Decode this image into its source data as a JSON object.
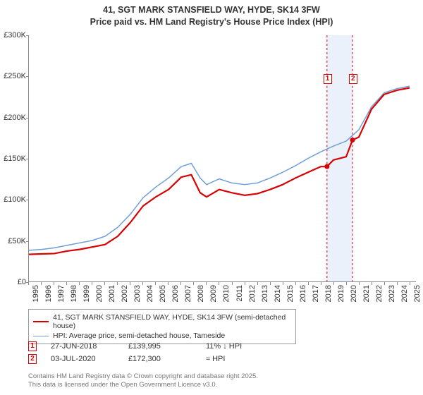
{
  "title": {
    "line1": "41, SGT MARK STANSFIELD WAY, HYDE, SK14 3FW",
    "line2": "Price paid vs. HM Land Registry's House Price Index (HPI)"
  },
  "chart": {
    "type": "line",
    "x_range": [
      1995,
      2025.5
    ],
    "y_range": [
      0,
      300000
    ],
    "y_ticks": [
      0,
      50000,
      100000,
      150000,
      200000,
      250000,
      300000
    ],
    "y_tick_labels": [
      "£0",
      "£50K",
      "£100K",
      "£150K",
      "£200K",
      "£250K",
      "£300K"
    ],
    "x_ticks": [
      1995,
      1996,
      1997,
      1998,
      1999,
      2000,
      2001,
      2002,
      2003,
      2004,
      2005,
      2006,
      2007,
      2008,
      2009,
      2010,
      2011,
      2012,
      2013,
      2014,
      2015,
      2016,
      2017,
      2018,
      2019,
      2020,
      2021,
      2022,
      2023,
      2024,
      2025
    ],
    "grid_color": "#888888",
    "background_color": "#ffffff",
    "series": [
      {
        "name": "price_paid",
        "label": "41, SGT MARK STANSFIELD WAY, HYDE, SK14 3FW (semi-detached house)",
        "color": "#d90000",
        "width": 2.2,
        "points": [
          [
            1995,
            33000
          ],
          [
            1996,
            33500
          ],
          [
            1997,
            34000
          ],
          [
            1998,
            37000
          ],
          [
            1999,
            39000
          ],
          [
            2000,
            42000
          ],
          [
            2001,
            45000
          ],
          [
            2002,
            55000
          ],
          [
            2003,
            72000
          ],
          [
            2004,
            92000
          ],
          [
            2005,
            103000
          ],
          [
            2006,
            112000
          ],
          [
            2007,
            127000
          ],
          [
            2007.8,
            130000
          ],
          [
            2008.5,
            108000
          ],
          [
            2009,
            103000
          ],
          [
            2010,
            112000
          ],
          [
            2011,
            108000
          ],
          [
            2012,
            105000
          ],
          [
            2013,
            107000
          ],
          [
            2014,
            112000
          ],
          [
            2015,
            118000
          ],
          [
            2016,
            126000
          ],
          [
            2017,
            133000
          ],
          [
            2018,
            140000
          ],
          [
            2018.49,
            139995
          ],
          [
            2019,
            148000
          ],
          [
            2020,
            152000
          ],
          [
            2020.5,
            172300
          ],
          [
            2021,
            176000
          ],
          [
            2022,
            210000
          ],
          [
            2023,
            228000
          ],
          [
            2024,
            233000
          ],
          [
            2025,
            236000
          ]
        ]
      },
      {
        "name": "hpi",
        "label": "HPI: Average price, semi-detached house, Tameside",
        "color": "#6f9fd8",
        "width": 1.5,
        "points": [
          [
            1995,
            38000
          ],
          [
            1996,
            39000
          ],
          [
            1997,
            41000
          ],
          [
            1998,
            44000
          ],
          [
            1999,
            47000
          ],
          [
            2000,
            50000
          ],
          [
            2001,
            55000
          ],
          [
            2002,
            66000
          ],
          [
            2003,
            82000
          ],
          [
            2004,
            102000
          ],
          [
            2005,
            115000
          ],
          [
            2006,
            126000
          ],
          [
            2007,
            140000
          ],
          [
            2007.8,
            144000
          ],
          [
            2008.5,
            126000
          ],
          [
            2009,
            118000
          ],
          [
            2010,
            125000
          ],
          [
            2011,
            120000
          ],
          [
            2012,
            118000
          ],
          [
            2013,
            120000
          ],
          [
            2014,
            126000
          ],
          [
            2015,
            133000
          ],
          [
            2016,
            141000
          ],
          [
            2017,
            150000
          ],
          [
            2018,
            158000
          ],
          [
            2019,
            165000
          ],
          [
            2020,
            171000
          ],
          [
            2021,
            185000
          ],
          [
            2022,
            213000
          ],
          [
            2023,
            230000
          ],
          [
            2024,
            235000
          ],
          [
            2025,
            238000
          ]
        ]
      }
    ],
    "sale_markers": [
      {
        "n": "1",
        "x": 2018.49,
        "y": 139995,
        "color": "#d90000"
      },
      {
        "n": "2",
        "x": 2020.5,
        "y": 172300,
        "color": "#d90000"
      }
    ],
    "band": {
      "from_x": 2018.49,
      "to_x": 2020.5,
      "color": "rgba(100,150,220,0.13)"
    }
  },
  "legend": {
    "rows": [
      {
        "color": "#d90000",
        "width": 2.2,
        "label": "41, SGT MARK STANSFIELD WAY, HYDE, SK14 3FW (semi-detached house)"
      },
      {
        "color": "#6f9fd8",
        "width": 1.5,
        "label": "HPI: Average price, semi-detached house, Tameside"
      }
    ]
  },
  "sales": [
    {
      "n": "1",
      "color": "#d90000",
      "date": "27-JUN-2018",
      "price": "£139,995",
      "pct": "11% ↓ HPI"
    },
    {
      "n": "2",
      "color": "#d90000",
      "date": "03-JUL-2020",
      "price": "£172,300",
      "pct": "≈ HPI"
    }
  ],
  "copyright": {
    "line1": "Contains HM Land Registry data © Crown copyright and database right 2025.",
    "line2": "This data is licensed under the Open Government Licence v3.0."
  }
}
